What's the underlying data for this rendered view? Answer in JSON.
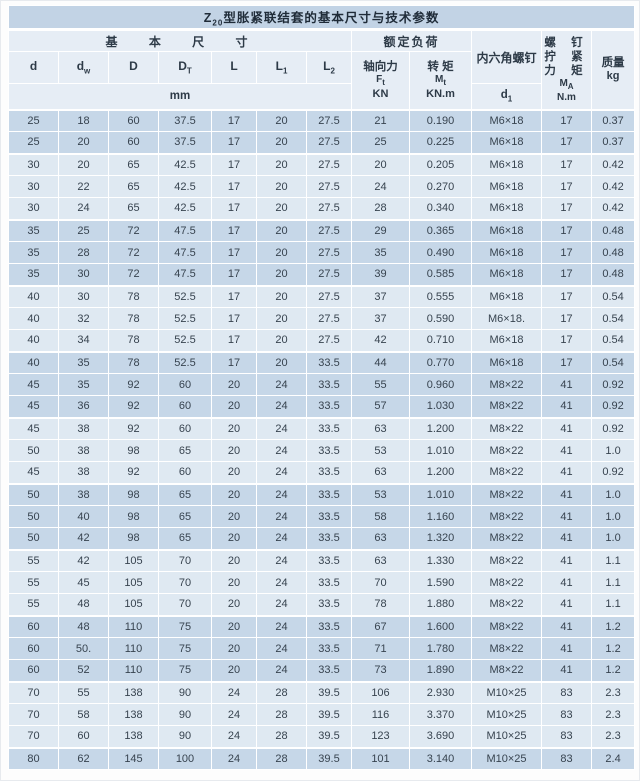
{
  "table": {
    "title": {
      "pre": "Z",
      "sub": "20",
      "rest": "型胀紧联结套的基本尺寸与技术参数"
    },
    "header": {
      "basic_dims": "基 本 尺 寸",
      "dim_cols": [
        {
          "main": "d",
          "sub": ""
        },
        {
          "main": "d",
          "sub": "w"
        },
        {
          "main": "D",
          "sub": ""
        },
        {
          "main": "D",
          "sub": "T"
        },
        {
          "main": "L",
          "sub": ""
        },
        {
          "main": "L",
          "sub": "1"
        },
        {
          "main": "L",
          "sub": "2"
        }
      ],
      "dim_unit": "mm",
      "rated_load": "额定负荷",
      "axial_label": "轴向力",
      "axial_sym": {
        "main": "F",
        "sub": "t"
      },
      "axial_unit": "KN",
      "torque_label": "转 矩",
      "torque_sym": {
        "main": "M",
        "sub": "t"
      },
      "torque_unit": "KN.m",
      "hex_screw": "内六角螺钉",
      "hex_sym": {
        "main": "d",
        "sub": "1"
      },
      "tighten_line1": "螺 钉",
      "tighten_line2": "拧 紧",
      "tighten_line3": "力 矩",
      "tighten_sym": {
        "main": "M",
        "sub": "A"
      },
      "tighten_unit": "N.m",
      "mass_label": "质量",
      "mass_unit": "kg"
    },
    "rows": [
      {
        "shade": "dark",
        "cells": [
          "25",
          "18",
          "60",
          "37.5",
          "17",
          "20",
          "27.5",
          "21",
          "0.190",
          "M6×18",
          "17",
          "0.37"
        ]
      },
      {
        "shade": "dark",
        "cells": [
          "25",
          "20",
          "60",
          "37.5",
          "17",
          "20",
          "27.5",
          "25",
          "0.225",
          "M6×18",
          "17",
          "0.37"
        ]
      },
      {
        "shade": "light",
        "cells": [
          "30",
          "20",
          "65",
          "42.5",
          "17",
          "20",
          "27.5",
          "20",
          "0.205",
          "M6×18",
          "17",
          "0.42"
        ]
      },
      {
        "shade": "light",
        "cells": [
          "30",
          "22",
          "65",
          "42.5",
          "17",
          "20",
          "27.5",
          "24",
          "0.270",
          "M6×18",
          "17",
          "0.42"
        ]
      },
      {
        "shade": "light",
        "cells": [
          "30",
          "24",
          "65",
          "42.5",
          "17",
          "20",
          "27.5",
          "28",
          "0.340",
          "M6×18",
          "17",
          "0.42"
        ]
      },
      {
        "shade": "dark",
        "cells": [
          "35",
          "25",
          "72",
          "47.5",
          "17",
          "20",
          "27.5",
          "29",
          "0.365",
          "M6×18",
          "17",
          "0.48"
        ]
      },
      {
        "shade": "dark",
        "cells": [
          "35",
          "28",
          "72",
          "47.5",
          "17",
          "20",
          "27.5",
          "35",
          "0.490",
          "M6×18",
          "17",
          "0.48"
        ]
      },
      {
        "shade": "dark",
        "cells": [
          "35",
          "30",
          "72",
          "47.5",
          "17",
          "20",
          "27.5",
          "39",
          "0.585",
          "M6×18",
          "17",
          "0.48"
        ]
      },
      {
        "shade": "light",
        "cells": [
          "40",
          "30",
          "78",
          "52.5",
          "17",
          "20",
          "27.5",
          "37",
          "0.555",
          "M6×18",
          "17",
          "0.54"
        ]
      },
      {
        "shade": "light",
        "cells": [
          "40",
          "32",
          "78",
          "52.5",
          "17",
          "20",
          "27.5",
          "37",
          "0.590",
          "M6×18.",
          "17",
          "0.54"
        ]
      },
      {
        "shade": "light",
        "cells": [
          "40",
          "34",
          "78",
          "52.5",
          "17",
          "20",
          "27.5",
          "42",
          "0.710",
          "M6×18",
          "17",
          "0.54"
        ]
      },
      {
        "shade": "dark",
        "cells": [
          "40",
          "35",
          "78",
          "52.5",
          "17",
          "20",
          "33.5",
          "44",
          "0.770",
          "M6×18",
          "17",
          "0.54"
        ]
      },
      {
        "shade": "dark",
        "cells": [
          "45",
          "35",
          "92",
          "60",
          "20",
          "24",
          "33.5",
          "55",
          "0.960",
          "M8×22",
          "41",
          "0.92"
        ]
      },
      {
        "shade": "dark",
        "cells": [
          "45",
          "36",
          "92",
          "60",
          "20",
          "24",
          "33.5",
          "57",
          "1.030",
          "M8×22",
          "41",
          "0.92"
        ]
      },
      {
        "shade": "light",
        "cells": [
          "45",
          "38",
          "92",
          "60",
          "20",
          "24",
          "33.5",
          "63",
          "1.200",
          "M8×22",
          "41",
          "0.92"
        ]
      },
      {
        "shade": "light",
        "cells": [
          "50",
          "38",
          "98",
          "65",
          "20",
          "24",
          "33.5",
          "53",
          "1.010",
          "M8×22",
          "41",
          "1.0"
        ]
      },
      {
        "shade": "light",
        "cells": [
          "45",
          "38",
          "92",
          "60",
          "20",
          "24",
          "33.5",
          "63",
          "1.200",
          "M8×22",
          "41",
          "0.92"
        ]
      },
      {
        "shade": "dark",
        "cells": [
          "50",
          "38",
          "98",
          "65",
          "20",
          "24",
          "33.5",
          "53",
          "1.010",
          "M8×22",
          "41",
          "1.0"
        ]
      },
      {
        "shade": "dark",
        "cells": [
          "50",
          "40",
          "98",
          "65",
          "20",
          "24",
          "33.5",
          "58",
          "1.160",
          "M8×22",
          "41",
          "1.0"
        ]
      },
      {
        "shade": "dark",
        "cells": [
          "50",
          "42",
          "98",
          "65",
          "20",
          "24",
          "33.5",
          "63",
          "1.320",
          "M8×22",
          "41",
          "1.0"
        ]
      },
      {
        "shade": "light",
        "cells": [
          "55",
          "42",
          "105",
          "70",
          "20",
          "24",
          "33.5",
          "63",
          "1.330",
          "M8×22",
          "41",
          "1.1"
        ]
      },
      {
        "shade": "light",
        "cells": [
          "55",
          "45",
          "105",
          "70",
          "20",
          "24",
          "33.5",
          "70",
          "1.590",
          "M8×22",
          "41",
          "1.1"
        ]
      },
      {
        "shade": "light",
        "cells": [
          "55",
          "48",
          "105",
          "70",
          "20",
          "24",
          "33.5",
          "78",
          "1.880",
          "M8×22",
          "41",
          "1.1"
        ]
      },
      {
        "shade": "dark",
        "cells": [
          "60",
          "48",
          "110",
          "75",
          "20",
          "24",
          "33.5",
          "67",
          "1.600",
          "M8×22",
          "41",
          "1.2"
        ]
      },
      {
        "shade": "dark",
        "cells": [
          "60",
          "50.",
          "110",
          "75",
          "20",
          "24",
          "33.5",
          "71",
          "1.780",
          "M8×22",
          "41",
          "1.2"
        ]
      },
      {
        "shade": "dark",
        "cells": [
          "60",
          "52",
          "110",
          "75",
          "20",
          "24",
          "33.5",
          "73",
          "1.890",
          "M8×22",
          "41",
          "1.2"
        ]
      },
      {
        "shade": "light",
        "cells": [
          "70",
          "55",
          "138",
          "90",
          "24",
          "28",
          "39.5",
          "106",
          "2.930",
          "M10×25",
          "83",
          "2.3"
        ]
      },
      {
        "shade": "light",
        "cells": [
          "70",
          "58",
          "138",
          "90",
          "24",
          "28",
          "39.5",
          "116",
          "3.370",
          "M10×25",
          "83",
          "2.3"
        ]
      },
      {
        "shade": "light",
        "cells": [
          "70",
          "60",
          "138",
          "90",
          "24",
          "28",
          "39.5",
          "123",
          "3.690",
          "M10×25",
          "83",
          "2.3"
        ]
      },
      {
        "shade": "dark",
        "cells": [
          "80",
          "62",
          "145",
          "100",
          "24",
          "28",
          "39.5",
          "101",
          "3.140",
          "M10×25",
          "83",
          "2.4"
        ]
      }
    ],
    "colors": {
      "title_bg": "#c2d3e5",
      "header_bg": "#e6edf5",
      "dark_row_bg": "#c6d7e8",
      "light_row_bg": "#dfe9f2",
      "text": "#333f4c"
    }
  }
}
